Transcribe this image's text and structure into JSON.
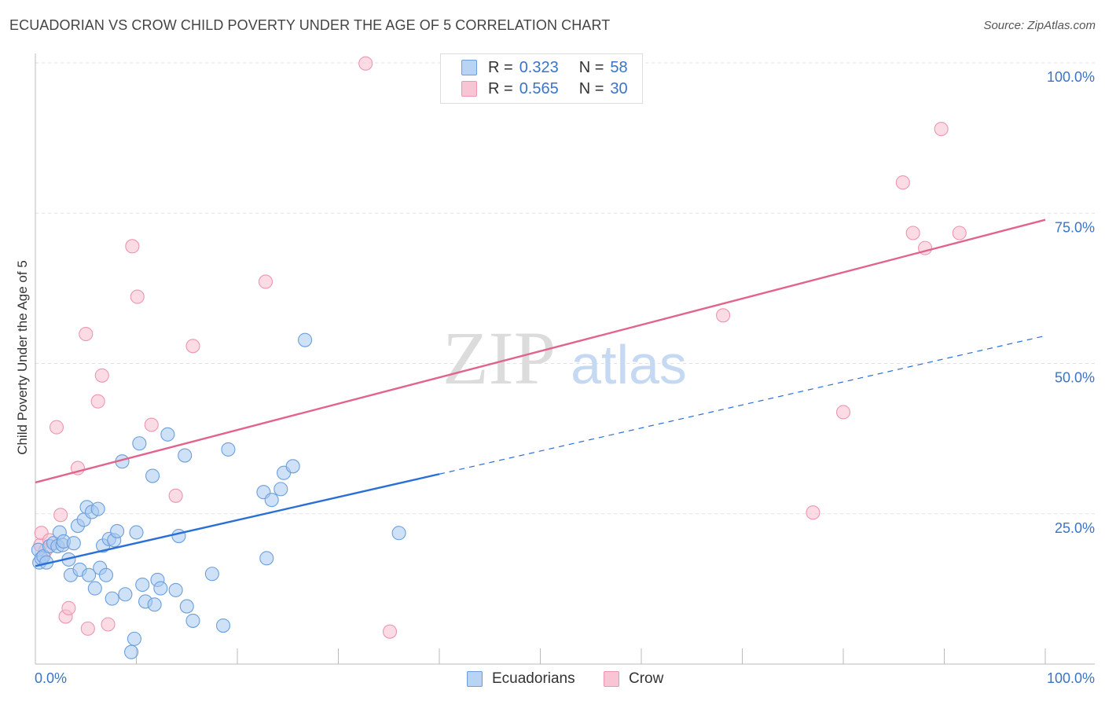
{
  "header": {
    "title": "ECUADORIAN VS CROW CHILD POVERTY UNDER THE AGE OF 5 CORRELATION CHART",
    "source": "Source: ZipAtlas.com"
  },
  "legend": {
    "rows": [
      {
        "r_label": "R =",
        "r_value": "0.323",
        "n_label": "N =",
        "n_value": "58"
      },
      {
        "r_label": "R =",
        "r_value": "0.565",
        "n_label": "N =",
        "n_value": "30"
      }
    ]
  },
  "bottom_legend": {
    "series1": "Ecuadorians",
    "series2": "Crow"
  },
  "colors": {
    "blue_fill": "#a8c8f0",
    "blue_stroke": "#6a9fdc",
    "blue_line": "#2a6fd6",
    "pink_fill": "#f8bfd0",
    "pink_stroke": "#ee95b0",
    "pink_line": "#e0648c",
    "tick_label": "#3a74c6",
    "grid": "#e2e2e2"
  },
  "chart_data": {
    "type": "scatter",
    "title": "ECUADORIAN VS CROW CHILD POVERTY UNDER THE AGE OF 5 CORRELATION CHART",
    "xlabel": "",
    "ylabel": "Child Poverty Under the Age of 5",
    "xlim": [
      0,
      100
    ],
    "ylim": [
      0,
      100
    ],
    "x_tick_labels": [
      "0.0%",
      "100.0%"
    ],
    "y_ticks": [
      25,
      50,
      75,
      100
    ],
    "y_tick_labels": [
      "25.0%",
      "50.0%",
      "75.0%",
      "100.0%"
    ],
    "watermark": {
      "zip": "ZIP",
      "atlas": "atlas"
    },
    "series": [
      {
        "name": "Ecuadorians",
        "r": 0.323,
        "n": 58,
        "trend": {
          "x0": 0,
          "y0": 16.3,
          "x1": 40,
          "y1": 31.6,
          "dash_to_x": 100,
          "dash_to_y": 54.6
        },
        "points": [
          [
            0.3,
            19.0
          ],
          [
            0.4,
            16.9
          ],
          [
            0.6,
            17.6
          ],
          [
            0.8,
            17.9
          ],
          [
            1.1,
            16.9
          ],
          [
            1.4,
            19.6
          ],
          [
            1.8,
            20.1
          ],
          [
            2.2,
            19.6
          ],
          [
            2.4,
            21.9
          ],
          [
            2.7,
            19.8
          ],
          [
            2.8,
            20.4
          ],
          [
            3.3,
            17.4
          ],
          [
            3.5,
            14.8
          ],
          [
            3.8,
            20.1
          ],
          [
            4.2,
            23.0
          ],
          [
            4.4,
            15.7
          ],
          [
            4.8,
            24.0
          ],
          [
            5.1,
            26.1
          ],
          [
            5.3,
            14.8
          ],
          [
            5.6,
            25.3
          ],
          [
            5.9,
            12.6
          ],
          [
            6.2,
            25.8
          ],
          [
            6.4,
            16.0
          ],
          [
            6.7,
            19.7
          ],
          [
            7.0,
            14.8
          ],
          [
            7.3,
            20.8
          ],
          [
            7.6,
            10.9
          ],
          [
            7.8,
            20.6
          ],
          [
            8.1,
            22.1
          ],
          [
            8.6,
            33.7
          ],
          [
            8.9,
            11.6
          ],
          [
            9.5,
            2.0
          ],
          [
            9.8,
            4.2
          ],
          [
            10.0,
            21.9
          ],
          [
            10.3,
            36.7
          ],
          [
            10.6,
            13.2
          ],
          [
            10.9,
            10.4
          ],
          [
            11.6,
            31.3
          ],
          [
            11.8,
            9.9
          ],
          [
            12.1,
            14.0
          ],
          [
            12.4,
            12.6
          ],
          [
            13.1,
            38.2
          ],
          [
            13.9,
            12.3
          ],
          [
            14.2,
            21.3
          ],
          [
            14.8,
            34.7
          ],
          [
            15.0,
            9.6
          ],
          [
            15.6,
            7.2
          ],
          [
            17.5,
            15.0
          ],
          [
            18.6,
            6.4
          ],
          [
            19.1,
            35.7
          ],
          [
            22.6,
            28.6
          ],
          [
            22.9,
            17.6
          ],
          [
            23.4,
            27.3
          ],
          [
            24.3,
            29.1
          ],
          [
            24.6,
            31.8
          ],
          [
            25.5,
            32.9
          ],
          [
            26.7,
            53.9
          ],
          [
            36.0,
            21.8
          ]
        ]
      },
      {
        "name": "Crow",
        "r": 0.565,
        "n": 30,
        "trend": {
          "x0": 0,
          "y0": 30.2,
          "x1": 100,
          "y1": 73.9
        },
        "points": [
          [
            0.5,
            19.8
          ],
          [
            0.6,
            21.8
          ],
          [
            1.4,
            20.6
          ],
          [
            2.1,
            39.4
          ],
          [
            2.5,
            24.8
          ],
          [
            3.0,
            7.9
          ],
          [
            3.3,
            9.3
          ],
          [
            4.2,
            32.6
          ],
          [
            5.2,
            5.9
          ],
          [
            5.0,
            54.9
          ],
          [
            6.2,
            43.7
          ],
          [
            6.6,
            48.0
          ],
          [
            7.2,
            6.6
          ],
          [
            9.6,
            69.5
          ],
          [
            10.1,
            61.1
          ],
          [
            11.5,
            39.8
          ],
          [
            13.9,
            28.0
          ],
          [
            15.6,
            52.9
          ],
          [
            22.8,
            63.6
          ],
          [
            32.7,
            99.9
          ],
          [
            35.1,
            5.4
          ],
          [
            68.1,
            58.0
          ],
          [
            77.0,
            25.2
          ],
          [
            80.0,
            41.9
          ],
          [
            85.9,
            80.1
          ],
          [
            86.9,
            71.7
          ],
          [
            88.1,
            69.2
          ],
          [
            89.7,
            89.0
          ],
          [
            91.5,
            71.7
          ],
          [
            1.0,
            18.9
          ]
        ]
      }
    ]
  }
}
